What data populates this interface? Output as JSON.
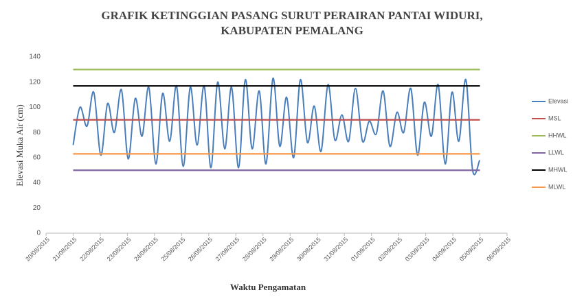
{
  "chart_data": {
    "type": "line",
    "title": [
      "GRAFIK KETINGGIAN PASANG SURUT PERAIRAN PANTAI WIDURI,",
      "KABUPATEN PEMALANG"
    ],
    "y_label": "Elevasi Muka Air (cm)",
    "x_label": "Waktu Pengamatan",
    "ylim": [
      0,
      140
    ],
    "yticks": [
      0,
      20,
      40,
      60,
      80,
      100,
      120,
      140
    ],
    "xlim": [
      0,
      17
    ],
    "xticks": [
      {
        "value": 0,
        "label": "20/08/2015"
      },
      {
        "value": 1,
        "label": "21/08/2015"
      },
      {
        "value": 2,
        "label": "22/08/2015"
      },
      {
        "value": 3,
        "label": "23/08/2015"
      },
      {
        "value": 4,
        "label": "24/08/2015"
      },
      {
        "value": 5,
        "label": "25/08/2015"
      },
      {
        "value": 6,
        "label": "26/08/2015"
      },
      {
        "value": 7,
        "label": "27/08/2015"
      },
      {
        "value": 8,
        "label": "28/08/2015"
      },
      {
        "value": 9,
        "label": "29/08/2015"
      },
      {
        "value": 10,
        "label": "30/08/2015"
      },
      {
        "value": 11,
        "label": "31/08/2015"
      },
      {
        "value": 12,
        "label": "01/09/2015"
      },
      {
        "value": 13,
        "label": "02/09/2015"
      },
      {
        "value": 14,
        "label": "03/09/2015"
      },
      {
        "value": 15,
        "label": "04/09/2015"
      },
      {
        "value": 16,
        "label": "05/09/2015"
      },
      {
        "value": 17,
        "label": "06/09/2015"
      }
    ],
    "legend": "right",
    "series": [
      {
        "name": "Elevasi",
        "color": "#4a7ebb",
        "smooth": true,
        "x": [
          1.0,
          1.25,
          1.51,
          1.76,
          2.02,
          2.27,
          2.52,
          2.78,
          3.03,
          3.29,
          3.54,
          3.79,
          4.05,
          4.3,
          4.56,
          4.81,
          5.06,
          5.32,
          5.57,
          5.83,
          6.08,
          6.33,
          6.59,
          6.84,
          7.1,
          7.35,
          7.6,
          7.86,
          8.11,
          8.37,
          8.62,
          8.87,
          9.13,
          9.38,
          9.64,
          9.89,
          10.14,
          10.4,
          10.65,
          10.91,
          11.16,
          11.41,
          11.67,
          11.92,
          12.18,
          12.43,
          12.68,
          12.94,
          13.19,
          13.45,
          13.7,
          13.95,
          14.21,
          14.46,
          14.72,
          14.97,
          15.22,
          15.48,
          15.73,
          15.99
        ],
        "values": [
          70,
          100,
          85,
          112,
          62,
          103,
          80,
          114,
          59,
          107,
          77,
          116,
          55,
          111,
          73,
          117,
          53,
          116,
          70,
          117,
          52,
          120,
          67,
          116,
          52,
          122,
          67,
          113,
          55,
          123,
          69,
          108,
          60,
          122,
          72,
          101,
          65,
          118,
          74,
          94,
          73,
          115,
          73,
          89,
          79,
          113,
          69,
          96,
          80,
          115,
          62,
          104,
          77,
          118,
          55,
          112,
          73,
          122,
          50,
          58
        ]
      },
      {
        "name": "MSL",
        "color": "#c0504d",
        "x": [
          1,
          16
        ],
        "values": [
          90,
          90
        ]
      },
      {
        "name": "HHWL",
        "color": "#9bbb59",
        "x": [
          1,
          16
        ],
        "values": [
          130,
          130
        ]
      },
      {
        "name": "LLWL",
        "color": "#8064a2",
        "x": [
          1,
          16
        ],
        "values": [
          50,
          50
        ]
      },
      {
        "name": "MHWL",
        "color": "#000000",
        "x": [
          1,
          16
        ],
        "values": [
          117,
          117
        ]
      },
      {
        "name": "MLWL",
        "color": "#f79646",
        "x": [
          1,
          16
        ],
        "values": [
          63,
          63
        ]
      }
    ]
  }
}
